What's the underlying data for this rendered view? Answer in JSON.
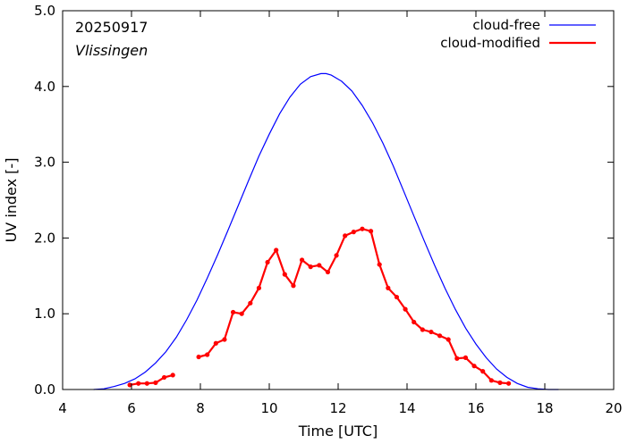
{
  "chart_data": {
    "type": "line",
    "date_label": "20250917",
    "location": "Vlissingen",
    "xlabel": "Time  [UTC]",
    "ylabel": "UV index  [-]",
    "xlim": [
      4,
      20
    ],
    "ylim": [
      0,
      5
    ],
    "xticks": [
      4,
      6,
      8,
      10,
      12,
      14,
      16,
      18,
      20
    ],
    "xtick_labels": [
      "4",
      "6",
      "8",
      "10",
      "12",
      "14",
      "16",
      "18",
      "20"
    ],
    "yticks": [
      0,
      1,
      2,
      3,
      4,
      5
    ],
    "ytick_labels": [
      "0.0",
      "1.0",
      "2.0",
      "3.0",
      "4.0",
      "5.0"
    ],
    "grid": false,
    "legend_position": "top-right",
    "series": [
      {
        "name": "cloud-free",
        "color": "#0000ff",
        "style": "line",
        "x": [
          4.9,
          5.2,
          5.5,
          5.8,
          6.1,
          6.4,
          6.7,
          7.0,
          7.3,
          7.6,
          7.9,
          8.2,
          8.5,
          8.8,
          9.1,
          9.4,
          9.7,
          10.0,
          10.3,
          10.6,
          10.9,
          11.2,
          11.5,
          11.65,
          11.8,
          12.1,
          12.4,
          12.7,
          13.0,
          13.3,
          13.6,
          13.9,
          14.2,
          14.5,
          14.8,
          15.1,
          15.4,
          15.7,
          16.0,
          16.3,
          16.6,
          16.9,
          17.2,
          17.5,
          17.8,
          18.1,
          18.4
        ],
        "y": [
          0.0,
          0.01,
          0.04,
          0.08,
          0.14,
          0.23,
          0.35,
          0.5,
          0.69,
          0.92,
          1.18,
          1.47,
          1.78,
          2.1,
          2.43,
          2.76,
          3.08,
          3.37,
          3.64,
          3.86,
          4.03,
          4.13,
          4.17,
          4.17,
          4.15,
          4.07,
          3.94,
          3.75,
          3.52,
          3.25,
          2.95,
          2.62,
          2.29,
          1.96,
          1.64,
          1.34,
          1.06,
          0.81,
          0.6,
          0.42,
          0.27,
          0.16,
          0.08,
          0.03,
          0.01,
          0.0,
          0.0
        ]
      },
      {
        "name": "cloud-modified",
        "color": "#ff0000",
        "style": "line-points",
        "segments": [
          {
            "x": [
              5.95,
              6.2,
              6.45,
              6.7,
              6.95,
              7.2
            ],
            "y": [
              0.06,
              0.08,
              0.08,
              0.09,
              0.16,
              0.19
            ]
          },
          {
            "x": [
              7.95,
              8.2,
              8.45,
              8.7,
              8.95,
              9.2,
              9.45,
              9.7,
              9.95,
              10.2,
              10.45,
              10.7,
              10.95,
              11.2,
              11.45,
              11.7,
              11.95,
              12.2,
              12.45,
              12.7,
              12.95,
              13.2,
              13.45,
              13.7,
              13.95,
              14.2,
              14.45,
              14.7,
              14.95,
              15.2,
              15.45,
              15.7,
              15.95,
              16.2,
              16.45,
              16.7,
              16.95
            ],
            "y": [
              0.43,
              0.46,
              0.61,
              0.66,
              1.02,
              1.0,
              1.14,
              1.34,
              1.68,
              1.84,
              1.52,
              1.37,
              1.71,
              1.62,
              1.64,
              1.55,
              1.77,
              2.03,
              2.08,
              2.12,
              2.09,
              1.65,
              1.34,
              1.22,
              1.06,
              0.89,
              0.79,
              0.76,
              0.71,
              0.66,
              0.41,
              0.42,
              0.31,
              0.24,
              0.12,
              0.09,
              0.08
            ]
          }
        ]
      }
    ]
  }
}
